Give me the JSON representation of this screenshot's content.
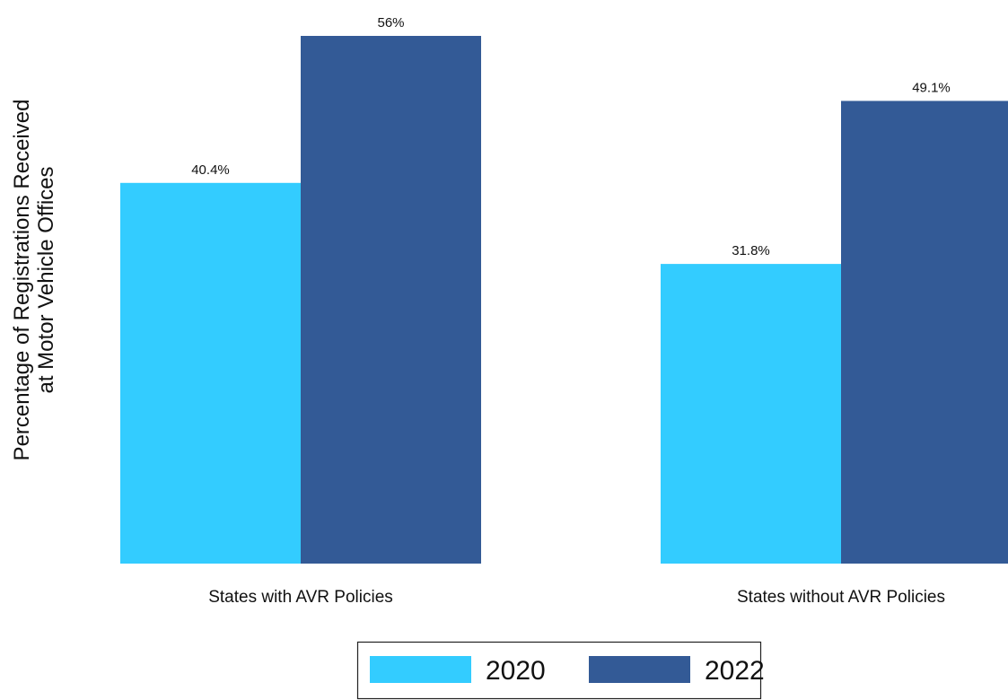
{
  "chart_data": {
    "type": "bar",
    "title": "",
    "xlabel": "",
    "ylabel_lines": [
      "Percentage of Registrations Received",
      "at Motor Vehicle Offices"
    ],
    "categories": [
      "States with AVR Policies",
      "States without AVR Policies"
    ],
    "series": [
      {
        "name": "2020",
        "color": "#33ccff",
        "values": [
          40.4,
          31.8
        ],
        "labels": [
          "40.4%",
          "31.8%"
        ]
      },
      {
        "name": "2022",
        "color": "#335a96",
        "values": [
          56,
          49.1
        ],
        "labels": [
          "56%",
          "49.1%"
        ]
      }
    ],
    "ylim": [
      0,
      56
    ],
    "grid": false,
    "legend_position": "bottom-center"
  }
}
